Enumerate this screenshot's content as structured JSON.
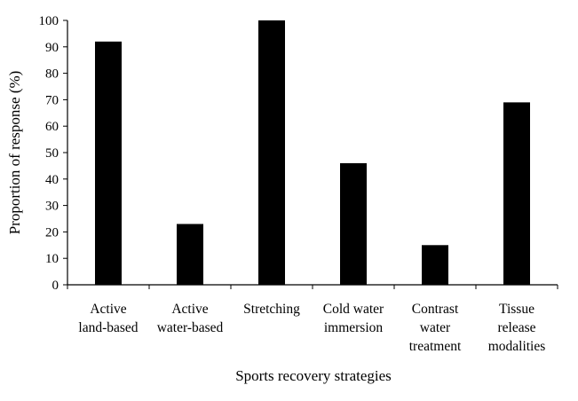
{
  "chart_data": {
    "type": "bar",
    "categories": [
      [
        "Active",
        "land-based"
      ],
      [
        "Active",
        "water-based"
      ],
      [
        "Stretching"
      ],
      [
        "Cold water",
        "immersion"
      ],
      [
        "Contrast",
        "water",
        "treatment"
      ],
      [
        "Tissue",
        "release",
        "modalities"
      ]
    ],
    "values": [
      92,
      23,
      100,
      46,
      15,
      69
    ],
    "xlabel": "Sports recovery  strategies",
    "ylabel": "Proportion of response (%)",
    "ylim": [
      0,
      100
    ],
    "yticks": [
      0,
      10,
      20,
      30,
      40,
      50,
      60,
      70,
      80,
      90,
      100
    ],
    "bar_color": "#000000",
    "grid": false,
    "legend": "none"
  }
}
